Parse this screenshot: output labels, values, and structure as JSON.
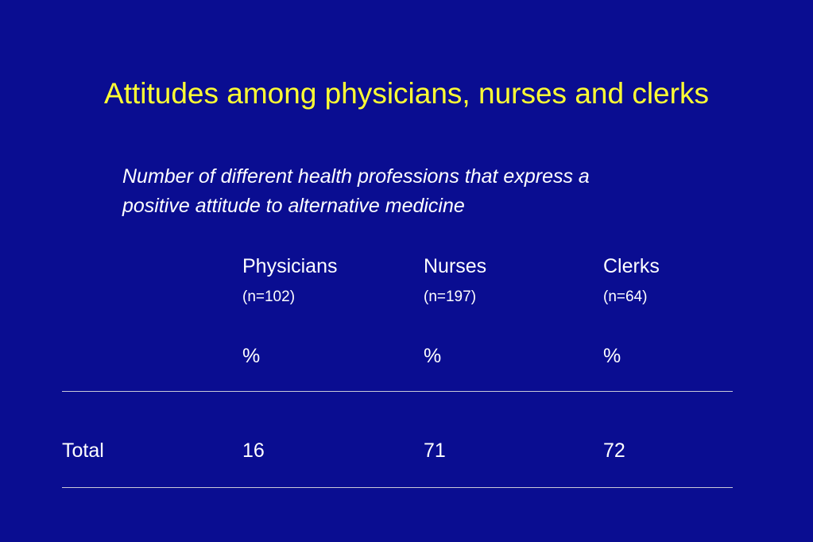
{
  "slide": {
    "title": "Attitudes among physicians, nurses and clerks",
    "subtitle_line1": "Number of different health professions that express a",
    "subtitle_line2": "positive attitude to alternative medicine"
  },
  "table": {
    "columns": [
      {
        "name": "Physicians",
        "n": "(n=102)",
        "unit": "%"
      },
      {
        "name": "Nurses",
        "n": "(n=197)",
        "unit": "%"
      },
      {
        "name": "Clerks",
        "n": "(n=64)",
        "unit": "%"
      }
    ],
    "rows": [
      {
        "label": "Total",
        "values": [
          "16",
          "71",
          "72"
        ]
      }
    ]
  },
  "colors": {
    "background": "#0a0d91",
    "title": "#ffff33",
    "text": "#ffffff"
  }
}
